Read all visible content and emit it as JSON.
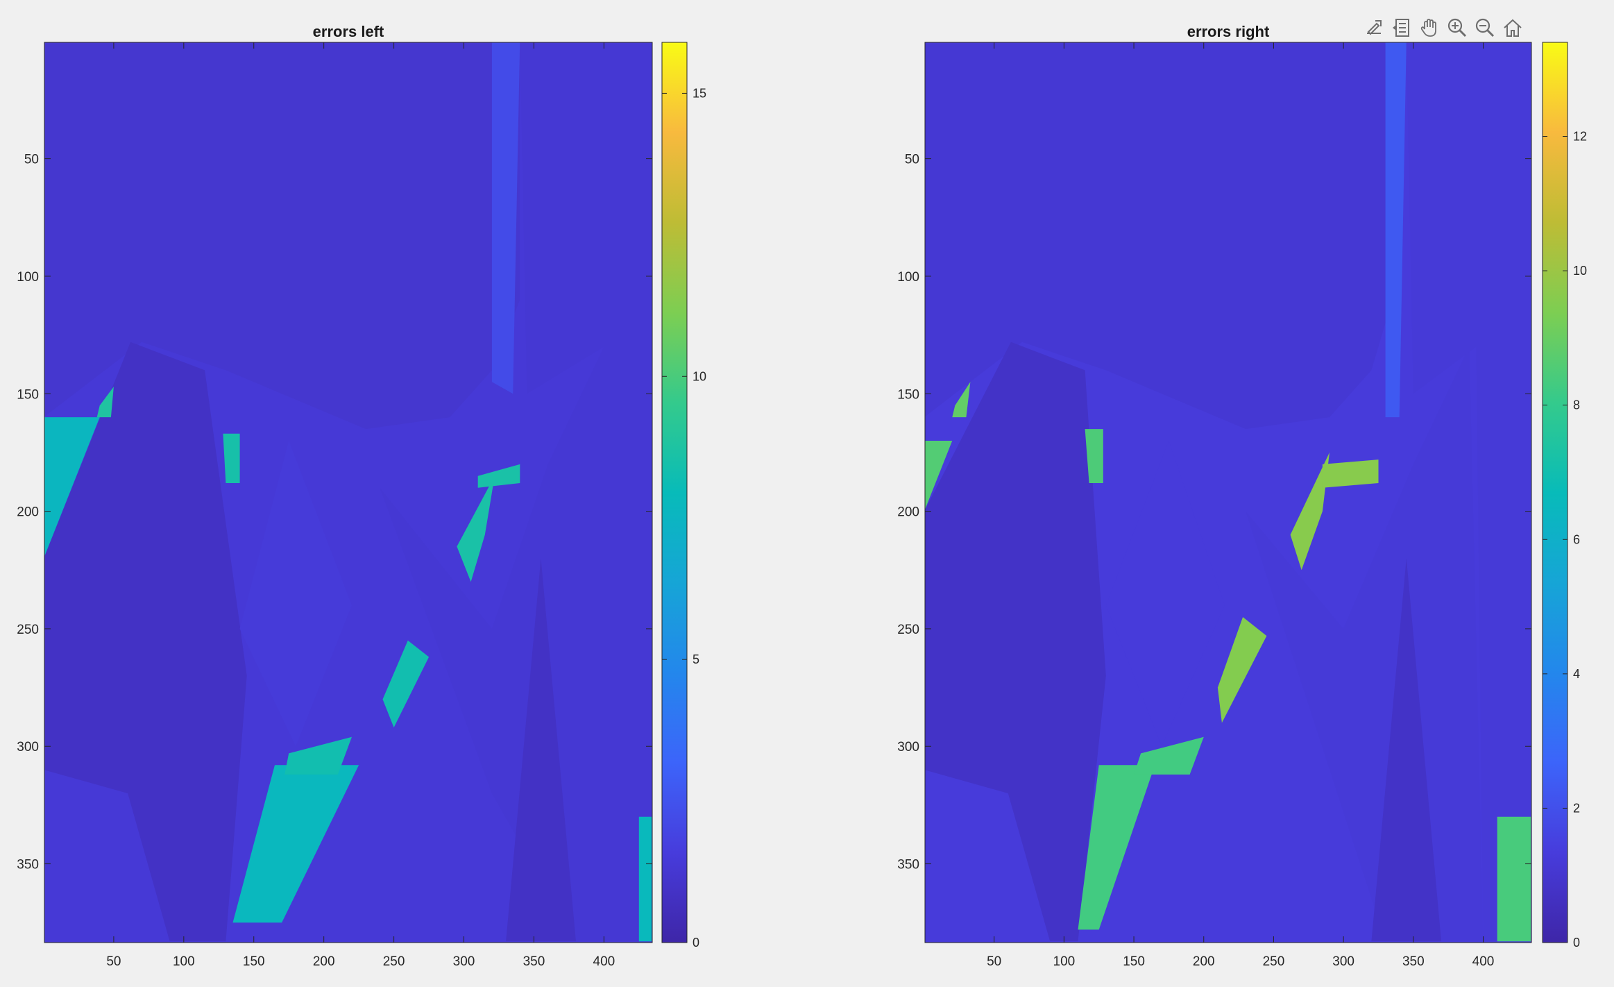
{
  "toolbar": {
    "items": [
      {
        "name": "export-icon"
      },
      {
        "name": "data-tips-icon"
      },
      {
        "name": "pan-icon"
      },
      {
        "name": "zoom-in-icon"
      },
      {
        "name": "zoom-out-icon"
      },
      {
        "name": "home-icon"
      }
    ]
  },
  "colormap": "parula",
  "chart_data": [
    {
      "type": "heatmap",
      "title": "errors left",
      "xlabel": "",
      "ylabel": "",
      "xlim": [
        0.5,
        434.5
      ],
      "ylim": [
        0.5,
        383.5
      ],
      "y_reversed": true,
      "xticks": [
        50,
        100,
        150,
        200,
        250,
        300,
        350,
        400
      ],
      "yticks": [
        50,
        100,
        150,
        200,
        250,
        300,
        350
      ],
      "colorbar": {
        "clim": [
          0,
          15.9
        ],
        "ticks": [
          0,
          5,
          10,
          15
        ]
      },
      "regions": [
        {
          "desc": "background",
          "value": 1.4
        },
        {
          "poly": [
            [
              0,
              160
            ],
            [
              70,
              128
            ],
            [
              130,
              140
            ],
            [
              230,
              165
            ],
            [
              290,
              160
            ],
            [
              320,
              140
            ],
            [
              340,
              110
            ],
            [
              340,
              0
            ],
            [
              0,
              0
            ]
          ],
          "value": 1.2
        },
        {
          "poly": [
            [
              0,
              220
            ],
            [
              62,
              128
            ],
            [
              115,
              140
            ],
            [
              145,
              270
            ],
            [
              130,
              383
            ],
            [
              0,
              383
            ]
          ],
          "value": 0.9
        },
        {
          "poly": [
            [
              0,
              160
            ],
            [
              40,
              160
            ],
            [
              0,
              220
            ]
          ],
          "value": 7.6
        },
        {
          "poly": [
            [
              175,
              170
            ],
            [
              220,
              240
            ],
            [
              180,
              300
            ],
            [
              140,
              250
            ]
          ],
          "value": 1.5
        },
        {
          "poly": [
            [
              240,
              190
            ],
            [
              320,
              250
            ],
            [
              360,
              180
            ],
            [
              400,
              130
            ],
            [
              400,
              383
            ],
            [
              380,
              383
            ],
            [
              320,
              320
            ]
          ],
          "value": 1.3
        },
        {
          "poly": [
            [
              355,
              220
            ],
            [
              380,
              383
            ],
            [
              330,
              383
            ]
          ],
          "value": 0.9
        },
        {
          "poly": [
            [
              0,
              310
            ],
            [
              60,
              320
            ],
            [
              90,
              383
            ],
            [
              0,
              383
            ]
          ],
          "value": 1.4
        },
        {
          "poly": [
            [
              320,
              0
            ],
            [
              340,
              0
            ],
            [
              335,
              150
            ],
            [
              320,
              145
            ]
          ],
          "value": 2.2
        },
        {
          "poly": [
            [
              340,
              0
            ],
            [
              434,
              0
            ],
            [
              434,
              383
            ],
            [
              400,
              383
            ],
            [
              400,
              130
            ],
            [
              345,
              150
            ]
          ],
          "value": 1.3
        },
        {
          "poly": [
            [
              165,
              308
            ],
            [
              225,
              308
            ],
            [
              170,
              375
            ],
            [
              135,
              375
            ]
          ],
          "value": 7.7
        },
        {
          "poly": [
            [
              175,
              303
            ],
            [
              220,
              296
            ],
            [
              210,
              312
            ],
            [
              172,
              312
            ]
          ],
          "value": 8.3
        },
        {
          "poly": [
            [
              242,
              280
            ],
            [
              260,
              255
            ],
            [
              275,
              262
            ],
            [
              250,
              292
            ]
          ],
          "value": 8.3
        },
        {
          "poly": [
            [
              295,
              215
            ],
            [
              322,
              185
            ],
            [
              315,
              210
            ],
            [
              305,
              230
            ]
          ],
          "value": 8.6
        },
        {
          "poly": [
            [
              310,
              185
            ],
            [
              340,
              180
            ],
            [
              340,
              188
            ],
            [
              310,
              190
            ]
          ],
          "value": 8.6
        },
        {
          "poly": [
            [
              40,
              155
            ],
            [
              50,
              147
            ],
            [
              48,
              160
            ],
            [
              38,
              160
            ]
          ],
          "value": 8.8
        },
        {
          "poly": [
            [
              128,
              167
            ],
            [
              140,
              167
            ],
            [
              140,
              188
            ],
            [
              130,
              188
            ]
          ],
          "value": 8.5
        },
        {
          "poly": [
            [
              425,
              330
            ],
            [
              434,
              330
            ],
            [
              434,
              383
            ],
            [
              425,
              383
            ]
          ],
          "value": 7.8
        }
      ]
    },
    {
      "type": "heatmap",
      "title": "errors right",
      "xlabel": "",
      "ylabel": "",
      "xlim": [
        0.5,
        434.5
      ],
      "ylim": [
        0.5,
        383.5
      ],
      "y_reversed": true,
      "xticks": [
        50,
        100,
        150,
        200,
        250,
        300,
        350,
        400
      ],
      "yticks": [
        50,
        100,
        150,
        200,
        250,
        300,
        350
      ],
      "colorbar": {
        "clim": [
          0,
          13.4
        ],
        "ticks": [
          0,
          2,
          4,
          6,
          8,
          10,
          12
        ]
      },
      "regions": [
        {
          "desc": "background",
          "value": 1.3
        },
        {
          "poly": [
            [
              0,
              160
            ],
            [
              70,
              128
            ],
            [
              130,
              140
            ],
            [
              230,
              165
            ],
            [
              290,
              160
            ],
            [
              320,
              140
            ],
            [
              335,
              110
            ],
            [
              335,
              0
            ],
            [
              0,
              0
            ]
          ],
          "value": 1.1
        },
        {
          "poly": [
            [
              0,
              200
            ],
            [
              62,
              128
            ],
            [
              115,
              140
            ],
            [
              130,
              270
            ],
            [
              110,
              383
            ],
            [
              0,
              383
            ]
          ],
          "value": 0.8
        },
        {
          "poly": [
            [
              0,
              170
            ],
            [
              20,
              170
            ],
            [
              0,
              200
            ]
          ],
          "value": 8.6
        },
        {
          "poly": [
            [
              175,
              170
            ],
            [
              215,
              240
            ],
            [
              170,
              300
            ],
            [
              130,
              240
            ]
          ],
          "value": 1.3
        },
        {
          "poly": [
            [
              230,
              200
            ],
            [
              300,
              250
            ],
            [
              350,
              180
            ],
            [
              390,
              130
            ],
            [
              400,
              383
            ],
            [
              330,
              383
            ]
          ],
          "value": 1.2
        },
        {
          "poly": [
            [
              345,
              220
            ],
            [
              370,
              383
            ],
            [
              320,
              383
            ]
          ],
          "value": 0.8
        },
        {
          "poly": [
            [
              0,
              310
            ],
            [
              60,
              320
            ],
            [
              90,
              383
            ],
            [
              0,
              383
            ]
          ],
          "value": 1.3
        },
        {
          "poly": [
            [
              330,
              0
            ],
            [
              345,
              0
            ],
            [
              340,
              160
            ],
            [
              330,
              160
            ]
          ],
          "value": 2.3
        },
        {
          "poly": [
            [
              345,
              0
            ],
            [
              434,
              0
            ],
            [
              434,
              383
            ],
            [
              400,
              383
            ],
            [
              395,
              130
            ],
            [
              350,
              150
            ]
          ],
          "value": 1.2
        },
        {
          "poly": [
            [
              125,
              308
            ],
            [
              165,
              308
            ],
            [
              125,
              378
            ],
            [
              110,
              378
            ]
          ],
          "value": 8.3
        },
        {
          "poly": [
            [
              155,
              303
            ],
            [
              200,
              296
            ],
            [
              190,
              312
            ],
            [
              150,
              312
            ]
          ],
          "value": 8.3
        },
        {
          "poly": [
            [
              210,
              275
            ],
            [
              228,
              245
            ],
            [
              245,
              253
            ],
            [
              213,
              290
            ]
          ],
          "value": 9.5
        },
        {
          "poly": [
            [
              262,
              210
            ],
            [
              290,
              175
            ],
            [
              285,
              200
            ],
            [
              270,
              225
            ]
          ],
          "value": 9.6
        },
        {
          "poly": [
            [
              285,
              180
            ],
            [
              325,
              178
            ],
            [
              325,
              188
            ],
            [
              285,
              190
            ]
          ],
          "value": 9.6
        },
        {
          "poly": [
            [
              22,
              155
            ],
            [
              33,
              145
            ],
            [
              30,
              160
            ],
            [
              20,
              160
            ]
          ],
          "value": 8.9
        },
        {
          "poly": [
            [
              115,
              165
            ],
            [
              128,
              165
            ],
            [
              128,
              188
            ],
            [
              118,
              188
            ]
          ],
          "value": 8.5
        },
        {
          "poly": [
            [
              410,
              330
            ],
            [
              434,
              330
            ],
            [
              434,
              383
            ],
            [
              410,
              383
            ]
          ],
          "value": 8.4
        }
      ]
    }
  ]
}
